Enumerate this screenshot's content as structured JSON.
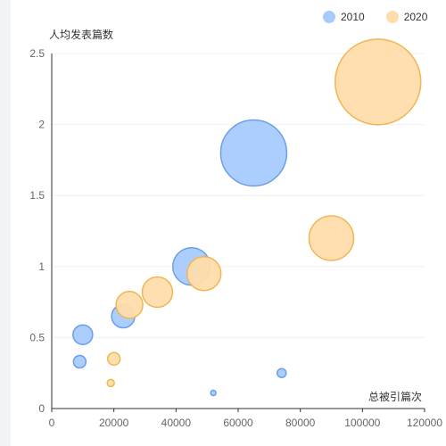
{
  "chart_data": {
    "type": "scatter",
    "xlabel": "总被引篇次",
    "ylabel": "人均发表篇数",
    "xlim": [
      0,
      120000
    ],
    "ylim": [
      0,
      2.5
    ],
    "x_ticks": [
      "0",
      "20000",
      "40000",
      "60000",
      "80000",
      "100000",
      "120000"
    ],
    "y_ticks": [
      "0",
      "0.5",
      "1",
      "1.5",
      "2",
      "2.5"
    ],
    "legend_position": "top-right",
    "grid": true,
    "series": [
      {
        "name": "2010",
        "color": "#a7cbff",
        "stroke": "#6a9fe8",
        "points": [
          {
            "x": 65000,
            "y": 1.8,
            "size": 37
          },
          {
            "x": 45000,
            "y": 1.0,
            "size": 21
          },
          {
            "x": 23000,
            "y": 0.65,
            "size": 13
          },
          {
            "x": 10000,
            "y": 0.52,
            "size": 11
          },
          {
            "x": 9000,
            "y": 0.33,
            "size": 7
          },
          {
            "x": 74000,
            "y": 0.25,
            "size": 5
          },
          {
            "x": 52000,
            "y": 0.11,
            "size": 3
          }
        ]
      },
      {
        "name": "2020",
        "color": "#ffdcab",
        "stroke": "#f0b654",
        "points": [
          {
            "x": 105000,
            "y": 2.3,
            "size": 48
          },
          {
            "x": 90000,
            "y": 1.2,
            "size": 25
          },
          {
            "x": 49000,
            "y": 0.95,
            "size": 19
          },
          {
            "x": 34000,
            "y": 0.82,
            "size": 17
          },
          {
            "x": 25000,
            "y": 0.73,
            "size": 15
          },
          {
            "x": 20000,
            "y": 0.35,
            "size": 7
          },
          {
            "x": 19000,
            "y": 0.18,
            "size": 4
          }
        ]
      }
    ]
  }
}
